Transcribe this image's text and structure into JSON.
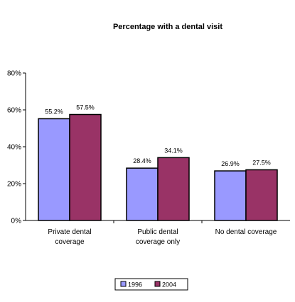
{
  "chart_data": {
    "type": "bar",
    "title": "Percentage with a dental visit",
    "xlabel": "",
    "ylabel": "",
    "categories": [
      [
        "Private dental",
        "coverage"
      ],
      [
        "Public dental",
        "coverage only"
      ],
      [
        "No dental coverage"
      ]
    ],
    "series": [
      {
        "name": "1996",
        "color": "#9999ff",
        "values": [
          55.2,
          28.4,
          26.9
        ],
        "labels": [
          "55.2%",
          "28.4%",
          "26.9%"
        ]
      },
      {
        "name": "2004",
        "color": "#993366",
        "values": [
          57.5,
          34.1,
          27.5
        ],
        "labels": [
          "57.5%",
          "34.1%",
          "27.5%"
        ]
      }
    ],
    "ylim": [
      0,
      80
    ],
    "yticks": [
      0,
      20,
      40,
      60,
      80
    ],
    "ytick_labels": [
      "0%",
      "20%",
      "40%",
      "60%",
      "80%"
    ],
    "grid": false,
    "legend_position": "bottom"
  }
}
